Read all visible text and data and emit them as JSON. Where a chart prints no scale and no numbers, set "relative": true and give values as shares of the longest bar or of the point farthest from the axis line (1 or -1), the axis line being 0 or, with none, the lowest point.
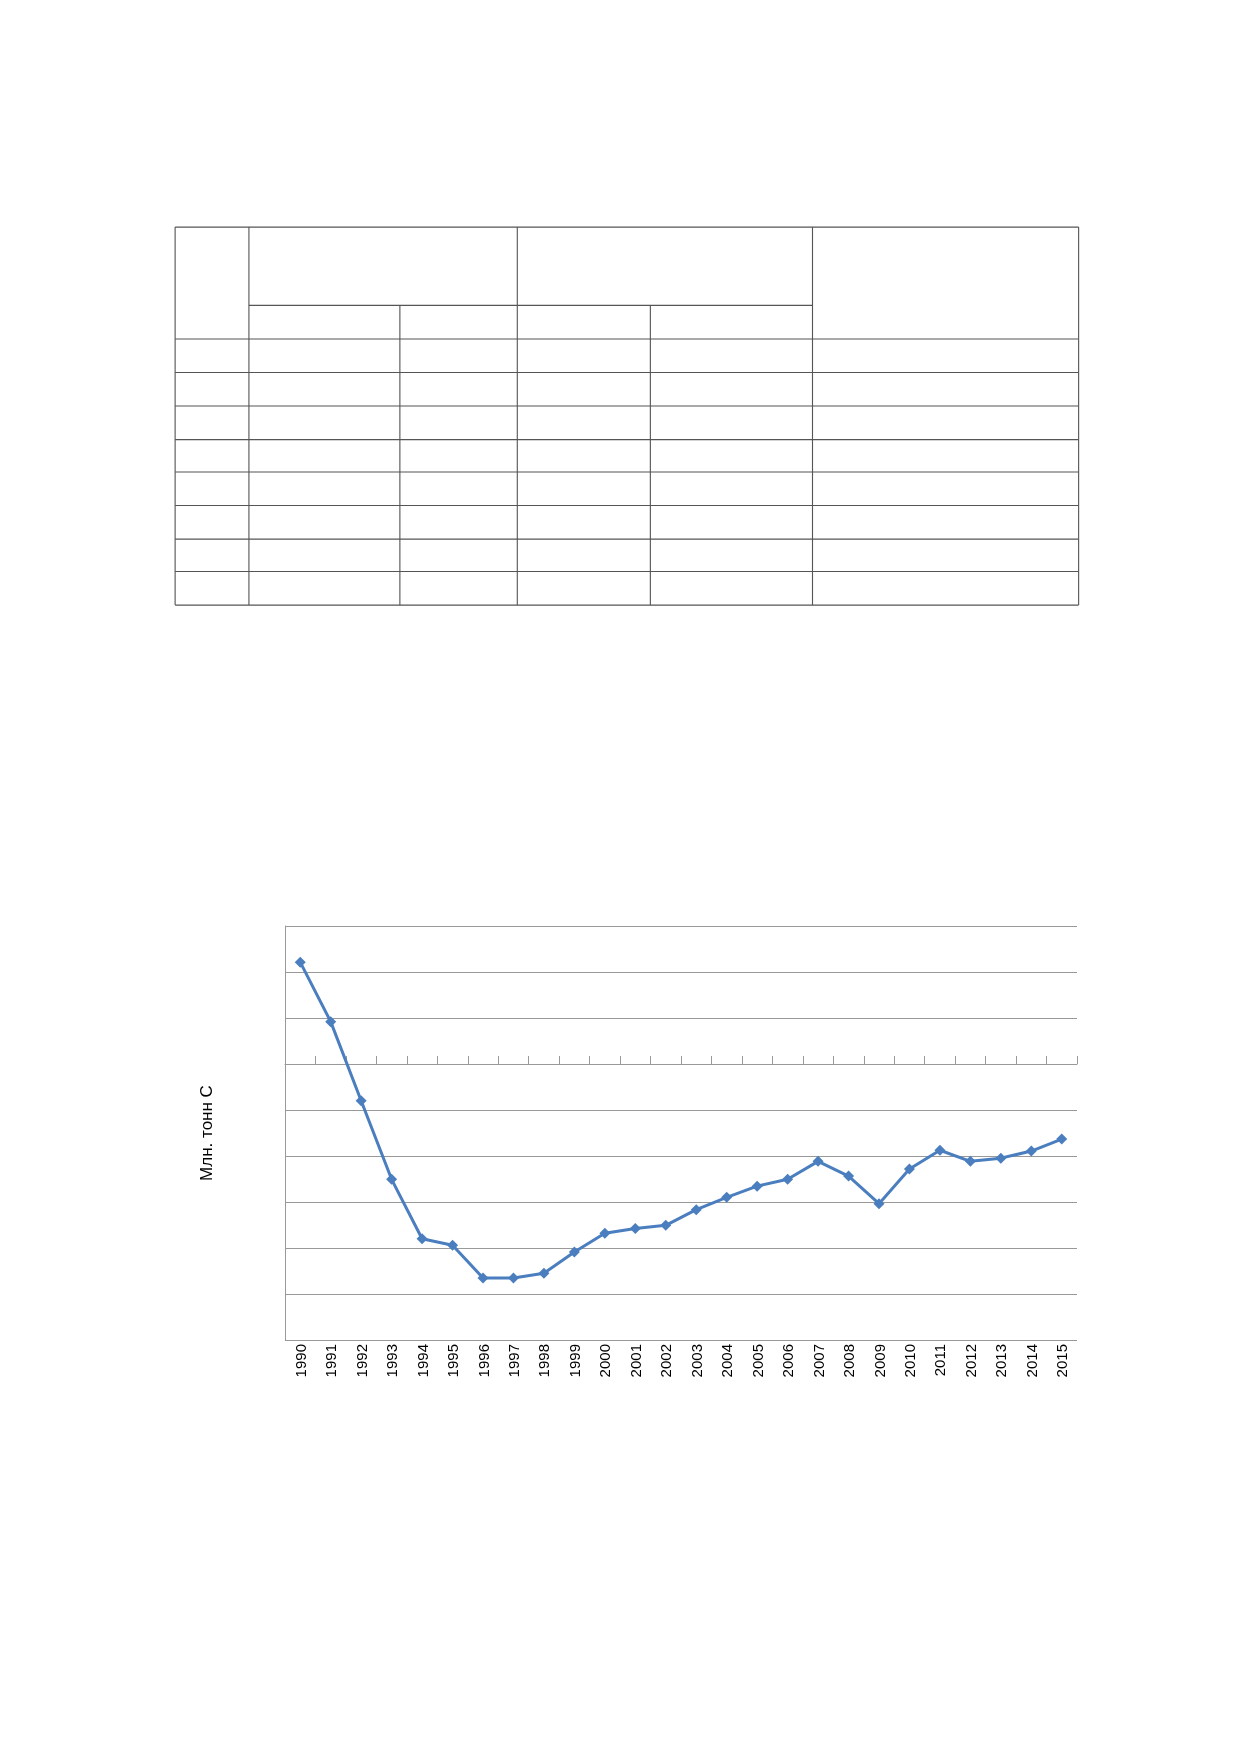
{
  "chart_data": {
    "type": "line",
    "ylabel": "Млн. тонн С",
    "relative": true,
    "color": "#4a7ebf",
    "marker": "diamond",
    "grid": "y",
    "categories": [
      "1990",
      "1991",
      "1992",
      "1993",
      "1994",
      "1995",
      "1996",
      "1997",
      "1998",
      "1999",
      "2000",
      "2001",
      "2002",
      "2003",
      "2004",
      "2005",
      "2006",
      "2007",
      "2008",
      "2009",
      "2010",
      "2011",
      "2012",
      "2013",
      "2014",
      "2015"
    ],
    "values": [
      0.476,
      0.198,
      -0.172,
      -0.539,
      -0.817,
      -0.847,
      -1,
      -1,
      -0.978,
      -0.879,
      -0.791,
      -0.769,
      -0.754,
      -0.681,
      -0.623,
      -0.571,
      -0.539,
      -0.455,
      -0.524,
      -0.653,
      -0.491,
      -0.403,
      -0.455,
      -0.44,
      -0.407,
      -0.351
    ]
  }
}
